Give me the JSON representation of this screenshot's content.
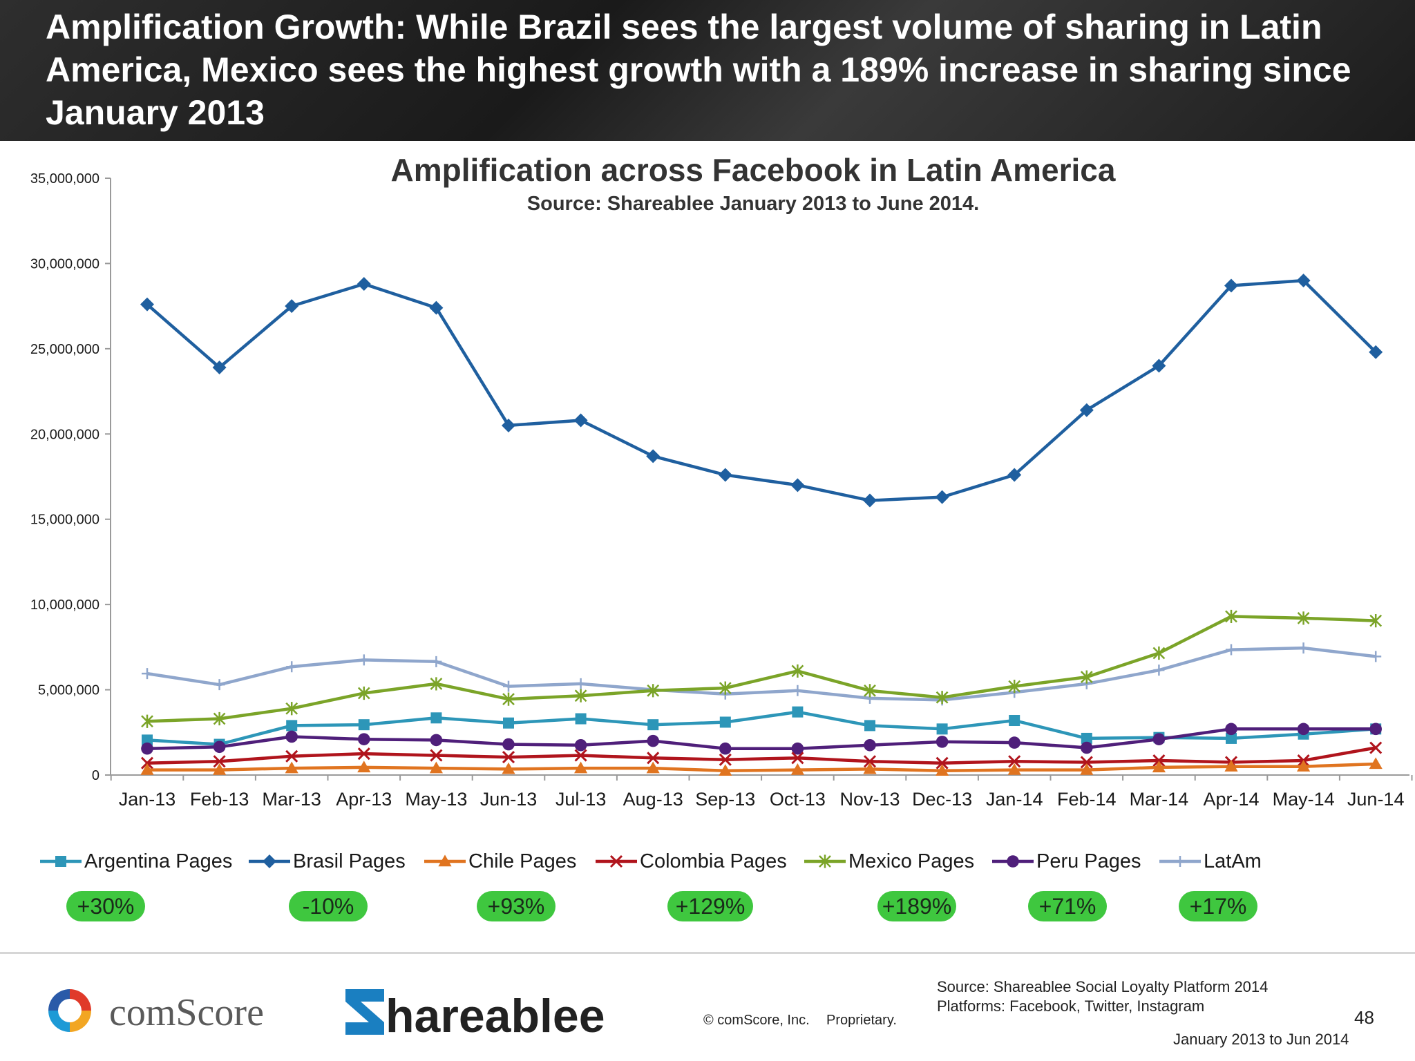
{
  "header": {
    "title": "Amplification Growth: While Brazil sees the largest volume of sharing in Latin America, Mexico sees the highest growth with a 189% increase in sharing since January 2013"
  },
  "chart_data": {
    "type": "line",
    "title": "Amplification across Facebook in Latin America",
    "subtitle": "Source: Shareablee January 2013 to June 2014.",
    "xlabel": "",
    "ylabel": "",
    "ylim": [
      0,
      35000000
    ],
    "yticks": [
      0,
      5000000,
      10000000,
      15000000,
      20000000,
      25000000,
      30000000,
      35000000
    ],
    "ytick_labels": [
      "0",
      "5,000,000",
      "10,000,000",
      "15,000,000",
      "20,000,000",
      "25,000,000",
      "30,000,000",
      "35,000,000"
    ],
    "categories": [
      "Jan-13",
      "Feb-13",
      "Mar-13",
      "Apr-13",
      "May-13",
      "Jun-13",
      "Jul-13",
      "Aug-13",
      "Sep-13",
      "Oct-13",
      "Nov-13",
      "Dec-13",
      "Jan-14",
      "Feb-14",
      "Mar-14",
      "Apr-14",
      "May-14",
      "Jun-14"
    ],
    "grid": false,
    "legend_position": "bottom",
    "series": [
      {
        "name": "LatAm",
        "color": "#8fa6cc",
        "marker": "plus",
        "values": [
          5950000,
          5300000,
          6350000,
          6750000,
          6650000,
          5200000,
          5350000,
          5000000,
          4750000,
          4950000,
          4500000,
          4400000,
          4850000,
          5350000,
          6150000,
          7350000,
          7450000,
          6950000
        ]
      },
      {
        "name": "Mexico Pages",
        "color": "#7ba428",
        "marker": "asterisk",
        "values": [
          3150000,
          3300000,
          3900000,
          4800000,
          5350000,
          4450000,
          4650000,
          4950000,
          5100000,
          6100000,
          4950000,
          4550000,
          5200000,
          5750000,
          7150000,
          9300000,
          9200000,
          9050000
        ]
      },
      {
        "name": "Argentina Pages",
        "color": "#2d96b8",
        "marker": "square",
        "values": [
          2050000,
          1800000,
          2900000,
          2950000,
          3350000,
          3050000,
          3300000,
          2950000,
          3100000,
          3700000,
          2900000,
          2700000,
          3200000,
          2150000,
          2200000,
          2150000,
          2400000,
          2700000
        ]
      },
      {
        "name": "Peru Pages",
        "color": "#4f1f7a",
        "marker": "circle",
        "values": [
          1550000,
          1650000,
          2250000,
          2100000,
          2050000,
          1800000,
          1750000,
          2000000,
          1550000,
          1550000,
          1750000,
          1950000,
          1900000,
          1600000,
          2100000,
          2700000,
          2700000,
          2700000
        ]
      },
      {
        "name": "Colombia Pages",
        "color": "#b0141c",
        "marker": "x",
        "values": [
          700000,
          800000,
          1100000,
          1250000,
          1150000,
          1050000,
          1150000,
          1000000,
          900000,
          1000000,
          800000,
          700000,
          800000,
          750000,
          850000,
          750000,
          850000,
          1600000
        ]
      },
      {
        "name": "Chile Pages",
        "color": "#e07420",
        "marker": "triangle",
        "values": [
          300000,
          300000,
          400000,
          450000,
          400000,
          350000,
          400000,
          400000,
          250000,
          300000,
          350000,
          250000,
          300000,
          300000,
          450000,
          500000,
          500000,
          650000
        ]
      },
      {
        "name": "Brasil Pages",
        "color": "#1f5f9f",
        "marker": "diamond",
        "values": [
          27600000,
          23900000,
          27500000,
          28800000,
          27400000,
          20500000,
          20800000,
          18700000,
          17600000,
          17000000,
          16100000,
          16300000,
          17600000,
          21400000,
          24000000,
          28700000,
          29000000,
          24800000
        ]
      }
    ]
  },
  "legend": {
    "items": [
      {
        "label": "Argentina Pages",
        "color": "#2d96b8",
        "marker": "square"
      },
      {
        "label": "Brasil Pages",
        "color": "#1f5f9f",
        "marker": "diamond"
      },
      {
        "label": "Chile Pages",
        "color": "#e07420",
        "marker": "triangle"
      },
      {
        "label": "Colombia Pages",
        "color": "#b0141c",
        "marker": "x"
      },
      {
        "label": "Mexico Pages",
        "color": "#7ba428",
        "marker": "asterisk"
      },
      {
        "label": "Peru Pages",
        "color": "#4f1f7a",
        "marker": "circle"
      },
      {
        "label": "LatAm",
        "color": "#8fa6cc",
        "marker": "plus"
      }
    ]
  },
  "badges": [
    "+30%",
    "-10%",
    "+93%",
    "+129%",
    "+189%",
    "+71%",
    "+17%"
  ],
  "footer": {
    "comscore_logo_text": "comScore",
    "shareablee_logo_text": "hareablee",
    "copyright": "© comScore, Inc.",
    "proprietary": "Proprietary.",
    "source_line1": "Source: Shareablee Social Loyalty Platform 2014",
    "source_line2": "Platforms: Facebook, Twitter, Instagram",
    "page_number": "48",
    "date_range": "January 2013 to Jun 2014"
  }
}
